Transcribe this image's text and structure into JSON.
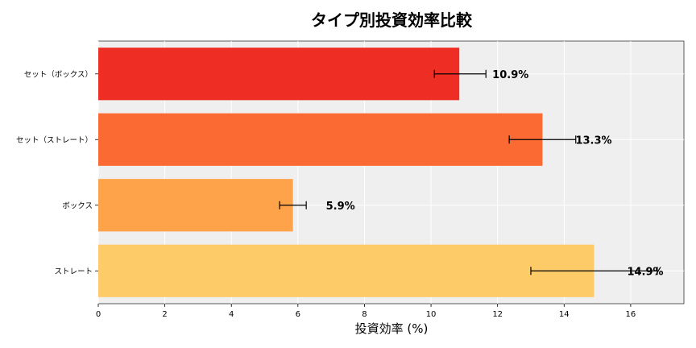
{
  "chart_data": {
    "type": "bar",
    "orientation": "horizontal",
    "title": "タイプ別投資効率比較",
    "xlabel": "投資効率 (%)",
    "ylabel": "",
    "xlim": [
      0,
      17.6
    ],
    "xticks": [
      0,
      2,
      4,
      6,
      8,
      10,
      12,
      14,
      16
    ],
    "grid": true,
    "categories": [
      "セット（ボックス）",
      "セット（ストレート）",
      "ボックス",
      "ストレート"
    ],
    "values": [
      10.85,
      13.35,
      5.85,
      14.9
    ],
    "error_low": [
      10.1,
      12.35,
      5.45,
      13.0
    ],
    "error_high": [
      11.65,
      14.35,
      6.25,
      16.8
    ],
    "labels": [
      "10.9%",
      "13.3%",
      "5.9%",
      "14.9%"
    ],
    "colors": [
      "#ee2e24",
      "#fc6a33",
      "#fea349",
      "#fecb69"
    ],
    "background": "#efefef"
  }
}
